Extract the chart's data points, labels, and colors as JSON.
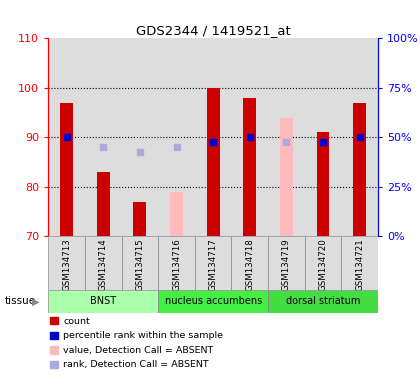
{
  "title": "GDS2344 / 1419521_at",
  "samples": [
    "GSM134713",
    "GSM134714",
    "GSM134715",
    "GSM134716",
    "GSM134717",
    "GSM134718",
    "GSM134719",
    "GSM134720",
    "GSM134721"
  ],
  "ylim_left": [
    70,
    110
  ],
  "ylim_right": [
    0,
    100
  ],
  "yticks_left": [
    70,
    80,
    90,
    100,
    110
  ],
  "ytick_labels_right": [
    "0%",
    "25%",
    "50%",
    "75%",
    "100%"
  ],
  "bar_color_present": "#cc0000",
  "bar_color_absent": "#ffbbbb",
  "dot_color_present": "#0000cc",
  "dot_color_absent": "#aaaadd",
  "bar_width": 0.35,
  "count_values": [
    97,
    83,
    77,
    null,
    100,
    98,
    null,
    91,
    97
  ],
  "count_absent": [
    null,
    null,
    null,
    79,
    null,
    null,
    94,
    null,
    null
  ],
  "rank_present": [
    90,
    null,
    null,
    null,
    89,
    90,
    null,
    89,
    90
  ],
  "rank_absent": [
    null,
    88,
    87,
    88,
    null,
    null,
    89,
    null,
    null
  ],
  "tissue_groups": [
    {
      "label": "BNST",
      "start": 0,
      "end": 3,
      "color": "#aaffaa"
    },
    {
      "label": "nucleus accumbens",
      "start": 3,
      "end": 6,
      "color": "#44ee44"
    },
    {
      "label": "dorsal striatum",
      "start": 6,
      "end": 9,
      "color": "#44dd44"
    }
  ],
  "tissue_label": "tissue",
  "bg_color": "#ffffff",
  "sample_bg_color": "#dddddd",
  "plot_bg_color": "#ffffff",
  "dot_size": 22
}
